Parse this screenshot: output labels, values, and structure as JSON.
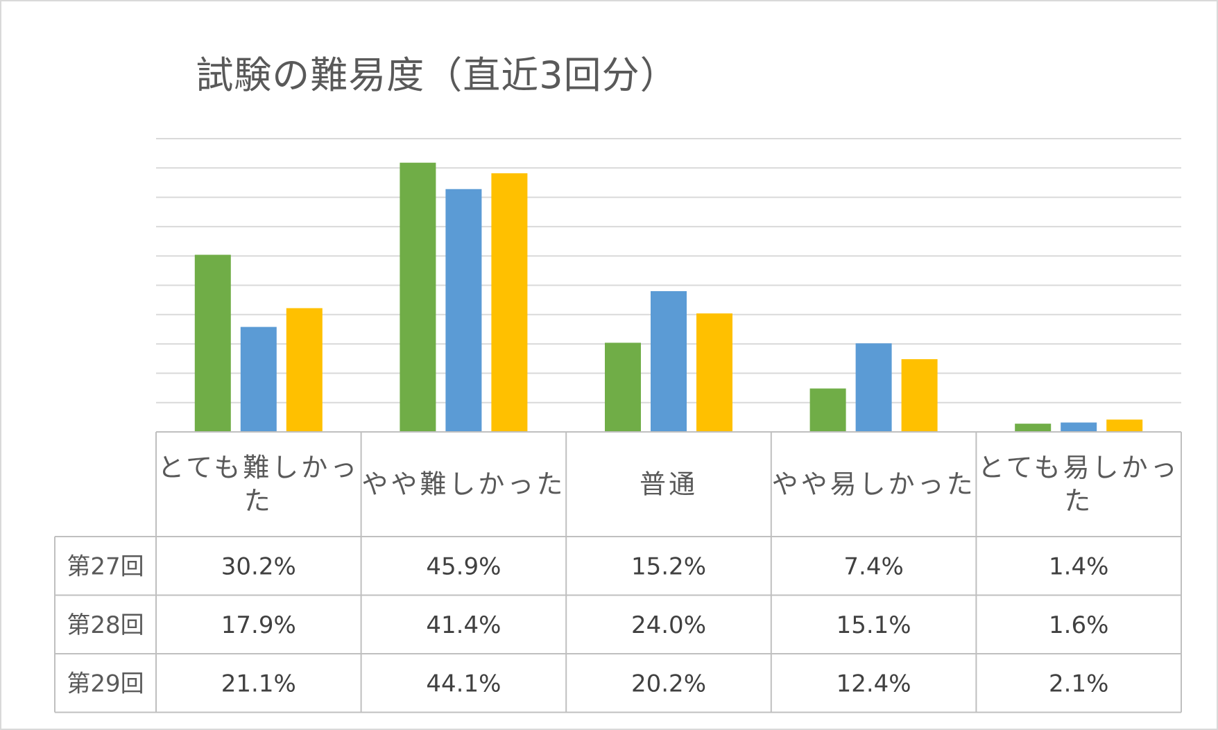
{
  "title": "試験の難易度（直近3回分）",
  "chart_data": {
    "type": "bar",
    "title": "試験の難易度（直近3回分）",
    "categories": [
      "とても難しかった",
      "やや難しかった",
      "普通",
      "やや易しかった",
      "とても易しかった"
    ],
    "category_lines": [
      [
        "とても難しかっ",
        "た"
      ],
      [
        "やや難しかった"
      ],
      [
        "普通"
      ],
      [
        "やや易しかった"
      ],
      [
        "とても易しかっ",
        "た"
      ]
    ],
    "series": [
      {
        "name": "第27回",
        "values": [
          30.2,
          45.9,
          15.2,
          7.4,
          1.4
        ],
        "labels": [
          "30.2%",
          "45.9%",
          "15.2%",
          "7.4%",
          "1.4%"
        ],
        "color": "#70ad47"
      },
      {
        "name": "第28回",
        "values": [
          17.9,
          41.4,
          24.0,
          15.1,
          1.6
        ],
        "labels": [
          "17.9%",
          "41.4%",
          "24.0%",
          "15.1%",
          "1.6%"
        ],
        "color": "#5b9bd5"
      },
      {
        "name": "第29回",
        "values": [
          21.1,
          44.1,
          20.2,
          12.4,
          2.1
        ],
        "labels": [
          "21.1%",
          "44.1%",
          "20.2%",
          "12.4%",
          "2.1%"
        ],
        "color": "#ffc000"
      }
    ],
    "ylim": [
      0,
      50
    ],
    "grid": true,
    "legend": "data table",
    "xlabel": "",
    "ylabel": ""
  }
}
